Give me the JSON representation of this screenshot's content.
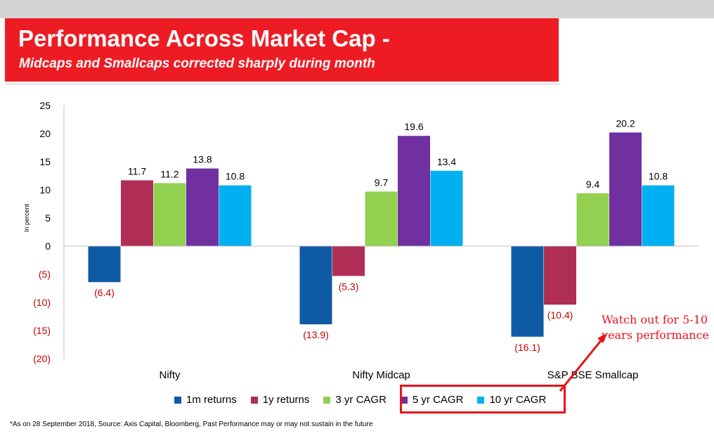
{
  "header": {
    "title": "Performance Across Market Cap -",
    "subtitle": "Midcaps and Smallcaps corrected sharply during month"
  },
  "chart_data": {
    "type": "bar",
    "categories": [
      "Nifty",
      "Nifty Midcap",
      "S&P BSE Smallcap"
    ],
    "ylabel": "In percent",
    "ylim": [
      -20,
      25
    ],
    "yticks": [
      25,
      20,
      15,
      10,
      5,
      0,
      -5,
      -10,
      -15,
      -20
    ],
    "ytick_labels": [
      "25",
      "20",
      "15",
      "10",
      "5",
      "0",
      "(5)",
      "(10)",
      "(15)",
      "(20)"
    ],
    "grid": false,
    "legend_position": "bottom",
    "series": [
      {
        "name": "1m returns",
        "color": "#0f5aa5",
        "values": [
          -6.4,
          -13.9,
          -16.1
        ],
        "labels": [
          "(6.4)",
          "(13.9)",
          "(16.1)"
        ]
      },
      {
        "name": "1y returns",
        "color": "#b02e56",
        "values": [
          11.7,
          -5.3,
          -10.4
        ],
        "labels": [
          "11.7",
          "(5.3)",
          "(10.4)"
        ]
      },
      {
        "name": "3 yr CAGR",
        "color": "#92d050",
        "values": [
          11.2,
          9.7,
          9.4
        ],
        "labels": [
          "11.2",
          "9.7",
          "9.4"
        ]
      },
      {
        "name": "5 yr CAGR",
        "color": "#7030a0",
        "values": [
          13.8,
          19.6,
          20.2
        ],
        "labels": [
          "13.8",
          "19.6",
          "20.2"
        ]
      },
      {
        "name": "10 yr CAGR",
        "color": "#00b0f0",
        "values": [
          10.8,
          13.4,
          10.8
        ],
        "labels": [
          "10.8",
          "13.4",
          "10.8"
        ]
      }
    ],
    "negative_label_color": "#cc0000",
    "annotation": "Watch out for 5-10 years performance"
  },
  "footnote": "*As on 28 September 2018, Source: Axis Capital, Bloomberg, Past Performance may or may not sustain in the future"
}
